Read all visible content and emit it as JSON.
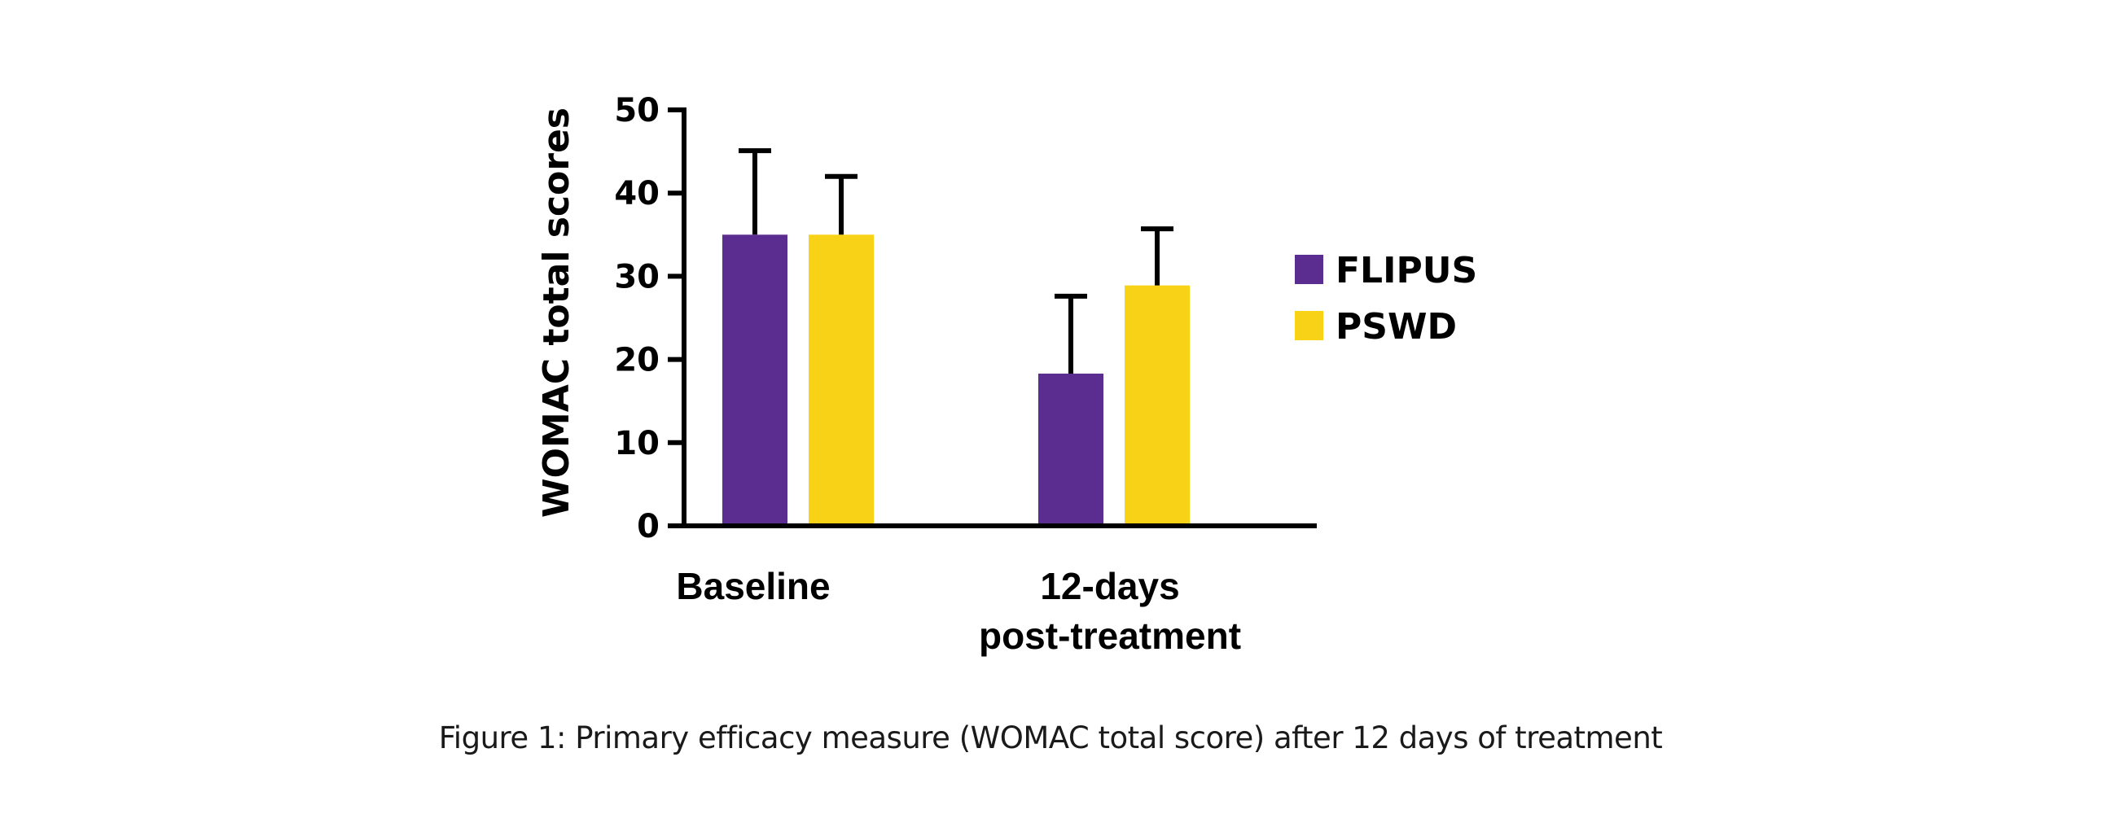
{
  "caption": "Figure 1: Primary efficacy measure (WOMAC total score) after 12 days of treatment",
  "chart_data": {
    "type": "bar",
    "title": "",
    "xlabel": "",
    "ylabel": "WOMAC total scores",
    "ylim": [
      0,
      50
    ],
    "yticks": [
      0,
      10,
      20,
      30,
      40,
      50
    ],
    "grid": false,
    "legend_position": "right",
    "categories": [
      [
        "Baseline"
      ],
      [
        "12-days",
        "post-treatment"
      ]
    ],
    "series": [
      {
        "name": "FLIPUS",
        "color": "#5c2d91",
        "values": [
          35.0,
          18.3
        ],
        "error_upper": [
          45.1,
          27.6
        ]
      },
      {
        "name": "PSWD",
        "color": "#f7d216",
        "values": [
          35.0,
          28.9
        ],
        "error_upper": [
          42.0,
          35.7
        ]
      }
    ]
  }
}
